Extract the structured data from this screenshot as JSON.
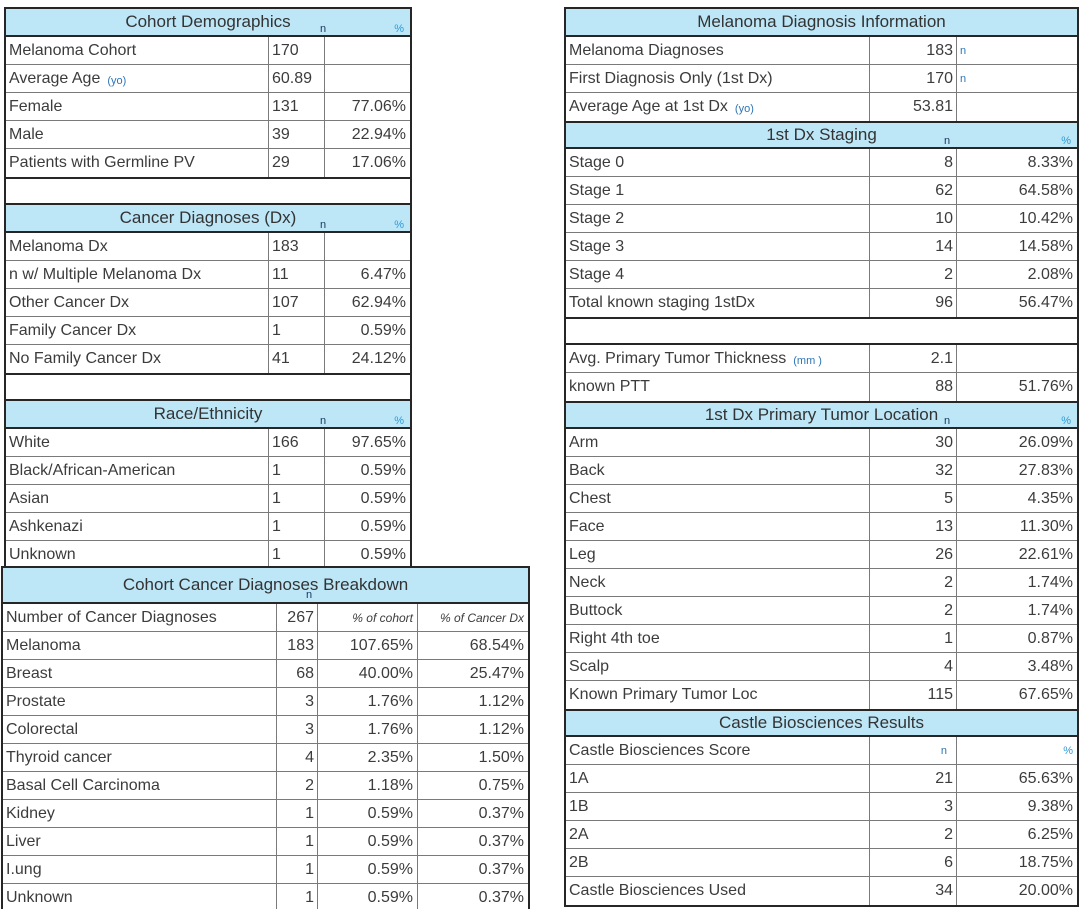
{
  "colors": {
    "header_fill": "#BDE6F7",
    "outer_border": "#262626",
    "grid_border": "#7a7a7a",
    "text": "#3c3c3c",
    "n_marker": "#17375D",
    "pct_marker": "#2E9BD6",
    "unit_label": "#2E75B6"
  },
  "left_top": {
    "demographics": {
      "title": "Cohort Demographics",
      "marker_n": "n",
      "marker_pct": "%",
      "rows": [
        {
          "cells": [
            {
              "t": "Melanoma Cohort"
            },
            {
              "t": "170"
            },
            {
              "t": ""
            }
          ]
        },
        {
          "cells": [
            {
              "t": "Average Age",
              "suffix": "(yo)"
            },
            {
              "t": "60.89"
            },
            {
              "t": ""
            }
          ]
        },
        {
          "cells": [
            {
              "t": "Female"
            },
            {
              "t": "131"
            },
            {
              "t": "77.06%"
            }
          ]
        },
        {
          "cells": [
            {
              "t": "Male"
            },
            {
              "t": "39"
            },
            {
              "t": "22.94%"
            }
          ]
        },
        {
          "cells": [
            {
              "t": "Patients with Germline PV"
            },
            {
              "t": "29"
            },
            {
              "t": "17.06%"
            }
          ]
        }
      ]
    },
    "cancer_dx": {
      "title": "Cancer Diagnoses (Dx)",
      "marker_n": "n",
      "marker_pct": "%",
      "rows": [
        {
          "cells": [
            {
              "t": "Melanoma Dx"
            },
            {
              "t": "183"
            },
            {
              "t": ""
            }
          ]
        },
        {
          "cells": [
            {
              "t": "n w/ Multiple Melanoma Dx"
            },
            {
              "t": "11"
            },
            {
              "t": "6.47%"
            }
          ]
        },
        {
          "cells": [
            {
              "t": "Other Cancer Dx"
            },
            {
              "t": "107"
            },
            {
              "t": "62.94%"
            }
          ]
        },
        {
          "cells": [
            {
              "t": "Family Cancer Dx"
            },
            {
              "t": "1"
            },
            {
              "t": "0.59%"
            }
          ]
        },
        {
          "cells": [
            {
              "t": "No Family Cancer Dx"
            },
            {
              "t": "41"
            },
            {
              "t": "24.12%"
            }
          ]
        }
      ]
    },
    "race": {
      "title": "Race/Ethnicity",
      "marker_n": "n",
      "marker_pct": "%",
      "rows": [
        {
          "cells": [
            {
              "t": "White"
            },
            {
              "t": "166"
            },
            {
              "t": "97.65%"
            }
          ]
        },
        {
          "cells": [
            {
              "t": "Black/African-American"
            },
            {
              "t": "1"
            },
            {
              "t": "0.59%"
            }
          ]
        },
        {
          "cells": [
            {
              "t": "Asian"
            },
            {
              "t": "1"
            },
            {
              "t": "0.59%"
            }
          ]
        },
        {
          "cells": [
            {
              "t": "Ashkenazi"
            },
            {
              "t": "1"
            },
            {
              "t": "0.59%"
            }
          ]
        },
        {
          "cells": [
            {
              "t": "Unknown"
            },
            {
              "t": "1"
            },
            {
              "t": "0.59%"
            }
          ]
        }
      ]
    }
  },
  "left_bottom": {
    "title": "Cohort Cancer Diagnoses Breakdown",
    "marker_n": "n",
    "rows": [
      {
        "cells": [
          {
            "t": "Number of Cancer Diagnoses"
          },
          {
            "t": "267"
          },
          {
            "t": "% of cohort",
            "cls": "italic"
          },
          {
            "t": "% of Cancer Dx",
            "cls": "italic"
          }
        ]
      },
      {
        "cells": [
          {
            "t": "Melanoma"
          },
          {
            "t": "183"
          },
          {
            "t": "107.65%"
          },
          {
            "t": "68.54%"
          }
        ]
      },
      {
        "cells": [
          {
            "t": "Breast"
          },
          {
            "t": "68"
          },
          {
            "t": "40.00%"
          },
          {
            "t": "25.47%"
          }
        ]
      },
      {
        "cells": [
          {
            "t": "Prostate"
          },
          {
            "t": "3"
          },
          {
            "t": "1.76%"
          },
          {
            "t": "1.12%"
          }
        ]
      },
      {
        "cells": [
          {
            "t": "Colorectal"
          },
          {
            "t": "3"
          },
          {
            "t": "1.76%"
          },
          {
            "t": "1.12%"
          }
        ]
      },
      {
        "cells": [
          {
            "t": "Thyroid cancer"
          },
          {
            "t": "4"
          },
          {
            "t": "2.35%"
          },
          {
            "t": "1.50%"
          }
        ]
      },
      {
        "cells": [
          {
            "t": "Basal Cell Carcinoma"
          },
          {
            "t": "2"
          },
          {
            "t": "1.18%"
          },
          {
            "t": "0.75%"
          }
        ]
      },
      {
        "cells": [
          {
            "t": "Kidney"
          },
          {
            "t": "1"
          },
          {
            "t": "0.59%"
          },
          {
            "t": "0.37%"
          }
        ]
      },
      {
        "cells": [
          {
            "t": "Liver"
          },
          {
            "t": "1"
          },
          {
            "t": "0.59%"
          },
          {
            "t": "0.37%"
          }
        ]
      },
      {
        "cells": [
          {
            "t": "I.ung"
          },
          {
            "t": "1"
          },
          {
            "t": "0.59%"
          },
          {
            "t": "0.37%"
          }
        ]
      },
      {
        "cells": [
          {
            "t": "Unknown"
          },
          {
            "t": "1"
          },
          {
            "t": "0.59%"
          },
          {
            "t": "0.37%"
          }
        ]
      }
    ]
  },
  "right": {
    "diagnosis_info": {
      "title": "Melanoma Diagnosis Information",
      "rows": [
        {
          "cells": [
            {
              "t": "Melanoma Diagnoses"
            },
            {
              "t": "183"
            },
            {
              "t": "n",
              "cls": "note-n-left"
            }
          ]
        },
        {
          "cells": [
            {
              "t": "First Diagnosis Only (1st Dx)"
            },
            {
              "t": "170"
            },
            {
              "t": "n",
              "cls": "note-n-left"
            }
          ]
        },
        {
          "cells": [
            {
              "t": "Average Age at 1st Dx",
              "suffix": "(yo)"
            },
            {
              "t": "53.81"
            },
            {
              "t": ""
            }
          ]
        }
      ]
    },
    "staging": {
      "title": "1st Dx Staging",
      "marker_n": "n",
      "marker_pct": "%",
      "rows": [
        {
          "cells": [
            {
              "t": "Stage 0"
            },
            {
              "t": "8"
            },
            {
              "t": "8.33%"
            }
          ]
        },
        {
          "cells": [
            {
              "t": "Stage 1"
            },
            {
              "t": "62"
            },
            {
              "t": "64.58%"
            }
          ]
        },
        {
          "cells": [
            {
              "t": "Stage 2"
            },
            {
              "t": "10"
            },
            {
              "t": "10.42%"
            }
          ]
        },
        {
          "cells": [
            {
              "t": "Stage 3"
            },
            {
              "t": "14"
            },
            {
              "t": "14.58%"
            }
          ]
        },
        {
          "cells": [
            {
              "t": "Stage 4"
            },
            {
              "t": "2"
            },
            {
              "t": "2.08%"
            }
          ]
        },
        {
          "cells": [
            {
              "t": "Total known staging 1stDx"
            },
            {
              "t": "96"
            },
            {
              "t": "56.47%"
            }
          ]
        }
      ]
    },
    "tumor_thickness": {
      "rows": [
        {
          "cells": [
            {
              "t": "Avg. Primary Tumor Thickness",
              "suffix": "(mm )"
            },
            {
              "t": "2.1"
            },
            {
              "t": ""
            }
          ]
        },
        {
          "cells": [
            {
              "t": "known PTT"
            },
            {
              "t": "88"
            },
            {
              "t": "51.76%"
            }
          ]
        }
      ]
    },
    "tumor_location": {
      "title": "1st Dx Primary Tumor Location",
      "marker_n": "n",
      "marker_pct": "%",
      "rows": [
        {
          "cells": [
            {
              "t": "Arm"
            },
            {
              "t": "30"
            },
            {
              "t": "26.09%"
            }
          ]
        },
        {
          "cells": [
            {
              "t": "Back"
            },
            {
              "t": "32"
            },
            {
              "t": "27.83%"
            }
          ]
        },
        {
          "cells": [
            {
              "t": "Chest"
            },
            {
              "t": "5"
            },
            {
              "t": "4.35%"
            }
          ]
        },
        {
          "cells": [
            {
              "t": "Face"
            },
            {
              "t": "13"
            },
            {
              "t": "11.30%"
            }
          ]
        },
        {
          "cells": [
            {
              "t": "Leg"
            },
            {
              "t": "26"
            },
            {
              "t": "22.61%"
            }
          ]
        },
        {
          "cells": [
            {
              "t": "Neck"
            },
            {
              "t": "2"
            },
            {
              "t": "1.74%"
            }
          ]
        },
        {
          "cells": [
            {
              "t": "Buttock"
            },
            {
              "t": "2"
            },
            {
              "t": "1.74%"
            }
          ]
        },
        {
          "cells": [
            {
              "t": "Right 4th toe"
            },
            {
              "t": "1"
            },
            {
              "t": "0.87%"
            }
          ]
        },
        {
          "cells": [
            {
              "t": "Scalp"
            },
            {
              "t": "4"
            },
            {
              "t": "3.48%"
            }
          ]
        },
        {
          "cells": [
            {
              "t": "Known Primary Tumor Loc"
            },
            {
              "t": "115"
            },
            {
              "t": "67.65%"
            }
          ]
        }
      ]
    },
    "castle": {
      "title": "Castle Biosciences Results",
      "rows": [
        {
          "cells": [
            {
              "t": "Castle Biosciences Score"
            },
            {
              "t": "n",
              "cls": "note-n"
            },
            {
              "t": "%",
              "cls": "note-pct"
            }
          ]
        },
        {
          "cells": [
            {
              "t": "1A"
            },
            {
              "t": "21"
            },
            {
              "t": "65.63%"
            }
          ]
        },
        {
          "cells": [
            {
              "t": "1B"
            },
            {
              "t": "3"
            },
            {
              "t": "9.38%"
            }
          ]
        },
        {
          "cells": [
            {
              "t": "2A"
            },
            {
              "t": "2"
            },
            {
              "t": "6.25%"
            }
          ]
        },
        {
          "cells": [
            {
              "t": "2B"
            },
            {
              "t": "6"
            },
            {
              "t": "18.75%"
            }
          ]
        },
        {
          "cells": [
            {
              "t": "Castle Biosciences Used"
            },
            {
              "t": "34"
            },
            {
              "t": "20.00%"
            }
          ]
        }
      ]
    }
  }
}
